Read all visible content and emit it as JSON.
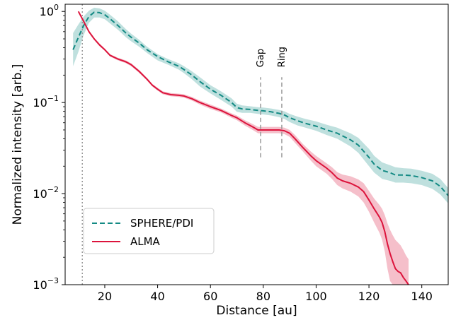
{
  "chart_data": {
    "type": "line",
    "xlabel": "Distance [au]",
    "ylabel": "Normalized intensity [arb.]",
    "xlim": [
      5,
      150
    ],
    "ylim": [
      0.001,
      1.2
    ],
    "yscale": "log",
    "xticks": [
      20,
      40,
      60,
      80,
      100,
      120,
      140
    ],
    "xtick_labels": [
      "20",
      "40",
      "60",
      "80",
      "100",
      "120",
      "140"
    ],
    "yticks": [
      0.001,
      0.01,
      0.1,
      1
    ],
    "ytick_labels": [
      {
        "base": "10",
        "exp": "−3"
      },
      {
        "base": "10",
        "exp": "−2"
      },
      {
        "base": "10",
        "exp": "−1"
      },
      {
        "base": "10",
        "exp": "0"
      }
    ],
    "grid": false,
    "legend_position": "lower-left",
    "colors": {
      "sphere": "#138a84",
      "sphere_band": "#a9d6d3",
      "alma": "#dc143c",
      "alma_band": "#f2a9b8",
      "marker_line": "#999999",
      "vertical_dotted": "#9a9a9a"
    },
    "series": [
      {
        "name": "SPHERE/PDI",
        "style": "dashed",
        "x": [
          8,
          10,
          12,
          14,
          16,
          18,
          20,
          22,
          25,
          28,
          30,
          33,
          36,
          40,
          44,
          48,
          50,
          53,
          56,
          60,
          64,
          68,
          70,
          72,
          75,
          78,
          80,
          83,
          86,
          88,
          90,
          93,
          96,
          100,
          104,
          108,
          110,
          113,
          116,
          120,
          122,
          125,
          128,
          130,
          133,
          136,
          140,
          144,
          147,
          150
        ],
        "y": [
          0.38,
          0.52,
          0.7,
          0.88,
          0.98,
          0.97,
          0.92,
          0.83,
          0.7,
          0.58,
          0.52,
          0.45,
          0.38,
          0.32,
          0.28,
          0.25,
          0.23,
          0.2,
          0.17,
          0.14,
          0.12,
          0.1,
          0.088,
          0.085,
          0.084,
          0.082,
          0.081,
          0.079,
          0.076,
          0.073,
          0.068,
          0.063,
          0.059,
          0.055,
          0.05,
          0.046,
          0.043,
          0.039,
          0.034,
          0.025,
          0.021,
          0.018,
          0.017,
          0.016,
          0.016,
          0.0158,
          0.015,
          0.0138,
          0.012,
          0.0095
        ],
        "upper": [
          0.58,
          0.72,
          0.88,
          1.02,
          1.1,
          1.08,
          1.02,
          0.92,
          0.78,
          0.64,
          0.57,
          0.49,
          0.41,
          0.34,
          0.3,
          0.27,
          0.25,
          0.22,
          0.19,
          0.155,
          0.133,
          0.111,
          0.097,
          0.093,
          0.091,
          0.089,
          0.088,
          0.086,
          0.083,
          0.08,
          0.075,
          0.07,
          0.066,
          0.062,
          0.057,
          0.053,
          0.05,
          0.046,
          0.041,
          0.031,
          0.026,
          0.022,
          0.0205,
          0.0195,
          0.019,
          0.0188,
          0.0178,
          0.0165,
          0.0145,
          0.0115
        ],
        "lower": [
          0.25,
          0.36,
          0.55,
          0.75,
          0.86,
          0.86,
          0.82,
          0.74,
          0.63,
          0.52,
          0.47,
          0.41,
          0.35,
          0.29,
          0.26,
          0.23,
          0.21,
          0.18,
          0.15,
          0.126,
          0.107,
          0.09,
          0.079,
          0.077,
          0.077,
          0.075,
          0.074,
          0.072,
          0.069,
          0.066,
          0.061,
          0.056,
          0.053,
          0.049,
          0.044,
          0.04,
          0.037,
          0.033,
          0.028,
          0.02,
          0.017,
          0.0145,
          0.0138,
          0.0132,
          0.0132,
          0.013,
          0.0124,
          0.0113,
          0.0098,
          0.0078
        ]
      },
      {
        "name": "ALMA",
        "style": "solid",
        "x": [
          10,
          12,
          14,
          16,
          18,
          20,
          22,
          25,
          28,
          30,
          33,
          36,
          38,
          40,
          42,
          45,
          48,
          50,
          53,
          56,
          60,
          64,
          68,
          70,
          73,
          76,
          78,
          80,
          83,
          86,
          88,
          90,
          92,
          95,
          98,
          100,
          104,
          106,
          108,
          110,
          113,
          116,
          118,
          120,
          122,
          124,
          125,
          126,
          127,
          128,
          129,
          130,
          131,
          132,
          133,
          134,
          135
        ],
        "y": [
          1.0,
          0.78,
          0.6,
          0.5,
          0.43,
          0.38,
          0.33,
          0.3,
          0.28,
          0.26,
          0.22,
          0.18,
          0.155,
          0.14,
          0.128,
          0.122,
          0.12,
          0.118,
          0.11,
          0.1,
          0.09,
          0.082,
          0.072,
          0.068,
          0.06,
          0.054,
          0.05,
          0.05,
          0.05,
          0.05,
          0.049,
          0.046,
          0.04,
          0.032,
          0.026,
          0.023,
          0.019,
          0.017,
          0.0148,
          0.0138,
          0.013,
          0.0118,
          0.0105,
          0.0085,
          0.0068,
          0.0055,
          0.0048,
          0.0038,
          0.0028,
          0.0022,
          0.0018,
          0.0015,
          0.0014,
          0.00135,
          0.0012,
          0.0011,
          0.001
        ],
        "upper": [
          1.02,
          0.8,
          0.62,
          0.515,
          0.445,
          0.39,
          0.34,
          0.31,
          0.29,
          0.27,
          0.228,
          0.186,
          0.16,
          0.145,
          0.133,
          0.127,
          0.125,
          0.123,
          0.115,
          0.105,
          0.095,
          0.086,
          0.076,
          0.072,
          0.064,
          0.058,
          0.054,
          0.054,
          0.054,
          0.054,
          0.053,
          0.05,
          0.044,
          0.035,
          0.029,
          0.026,
          0.0215,
          0.0195,
          0.0172,
          0.0162,
          0.0155,
          0.0143,
          0.013,
          0.0107,
          0.0088,
          0.0075,
          0.0068,
          0.0058,
          0.0047,
          0.004,
          0.0035,
          0.0031,
          0.0029,
          0.0027,
          0.0024,
          0.0021,
          0.0019
        ],
        "lower": [
          0.98,
          0.76,
          0.58,
          0.485,
          0.415,
          0.37,
          0.32,
          0.29,
          0.27,
          0.25,
          0.212,
          0.174,
          0.15,
          0.135,
          0.123,
          0.117,
          0.115,
          0.113,
          0.105,
          0.095,
          0.085,
          0.078,
          0.068,
          0.064,
          0.056,
          0.05,
          0.046,
          0.046,
          0.046,
          0.046,
          0.045,
          0.042,
          0.036,
          0.029,
          0.023,
          0.02,
          0.0165,
          0.0145,
          0.0124,
          0.0114,
          0.0105,
          0.0093,
          0.008,
          0.0063,
          0.0048,
          0.0037,
          0.0031,
          0.0023,
          0.0015,
          0.0011,
          0.00085,
          0.00075,
          0.0007,
          0.00068,
          0.00062,
          0.00058,
          0.00055
        ]
      }
    ],
    "reference_lines": [
      {
        "x": 11.5,
        "y_from": 0.001,
        "y_to": 1.2,
        "style": "dotted"
      },
      {
        "x": 79,
        "y_from": 0.025,
        "y_to": 0.19,
        "style": "dashed",
        "label": "Gap"
      },
      {
        "x": 87,
        "y_from": 0.025,
        "y_to": 0.19,
        "style": "dashed",
        "label": "Ring"
      }
    ]
  }
}
